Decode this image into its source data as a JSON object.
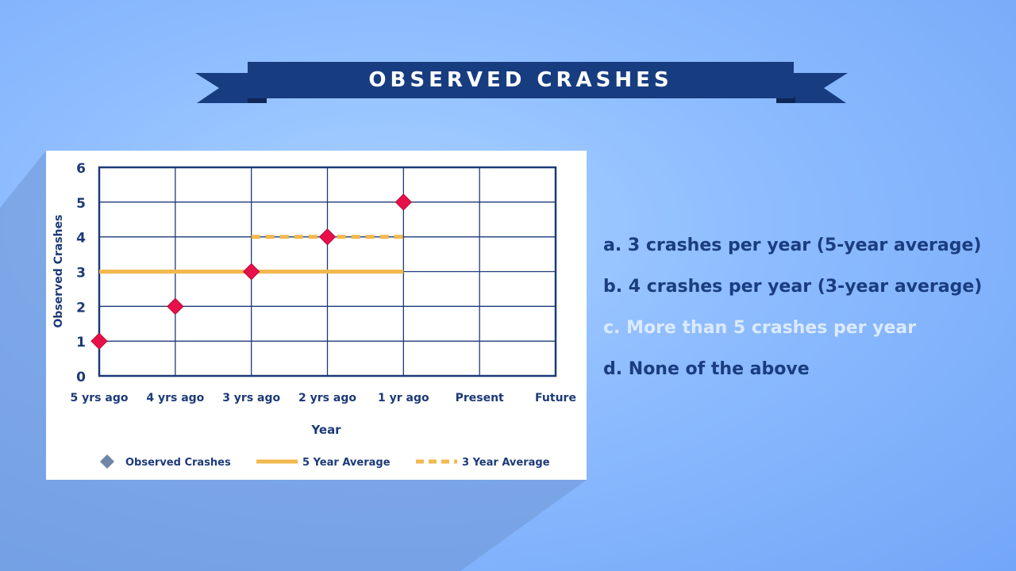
{
  "banner": {
    "title": "OBSERVED CRASHES"
  },
  "colors": {
    "banner": "#173c80",
    "grid": "#1c3a78",
    "marker": "#e8104a",
    "average": "#f2b84f",
    "axis_text": "#1c3a78",
    "answer": "#1a3d80",
    "answer_dim": "#dceaff"
  },
  "chart_data": {
    "type": "scatter",
    "title": "",
    "xlabel": "Year",
    "ylabel": "Observed Crashes",
    "categories": [
      "5 yrs ago",
      "4 yrs ago",
      "3 yrs ago",
      "2 yrs ago",
      "1 yr ago",
      "Present",
      "Future"
    ],
    "ylim": [
      0,
      6
    ],
    "yticks": [
      0,
      1,
      2,
      3,
      4,
      5,
      6
    ],
    "grid": true,
    "legend_position": "bottom",
    "series": [
      {
        "name": "Observed Crashes",
        "kind": "marker",
        "x": [
          "5 yrs ago",
          "4 yrs ago",
          "3 yrs ago",
          "2 yrs ago",
          "1 yr ago"
        ],
        "values": [
          1,
          2,
          3,
          4,
          5
        ]
      },
      {
        "name": "5 Year Average",
        "kind": "solid-line",
        "x": [
          "5 yrs ago",
          "1 yr ago"
        ],
        "values": [
          3,
          3
        ]
      },
      {
        "name": "3 Year Average",
        "kind": "dashed-line",
        "x": [
          "3 yrs ago",
          "1 yr ago"
        ],
        "values": [
          4,
          4
        ]
      }
    ]
  },
  "answers": [
    {
      "letter": "a.",
      "text": "3 crashes per year (5-year average)",
      "dim": false
    },
    {
      "letter": "b.",
      "text": "4 crashes per year (3-year average)",
      "dim": false
    },
    {
      "letter": "c.",
      "text": "More than 5 crashes per year",
      "dim": true
    },
    {
      "letter": "d.",
      "text": "None of the above",
      "dim": false
    }
  ]
}
